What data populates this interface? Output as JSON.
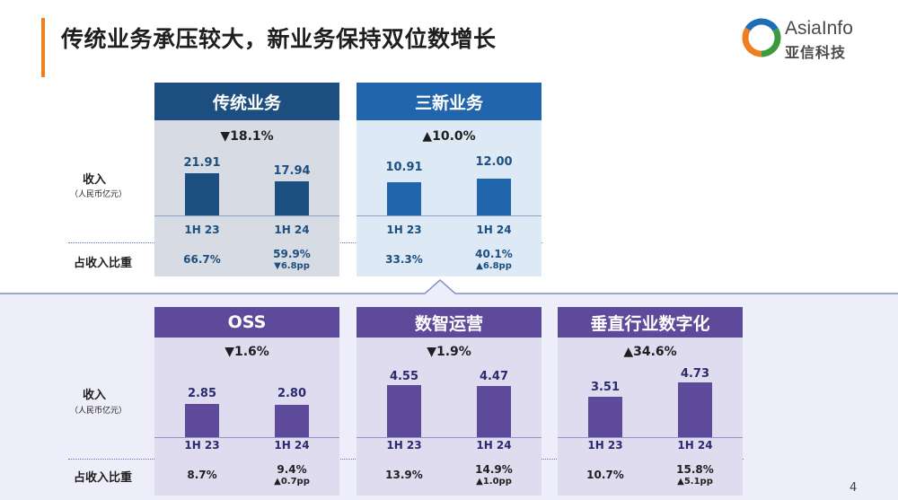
{
  "header": {
    "title": "传统业务承压较大，新业务保持双位数增长",
    "logo_en": "AsiaInfo",
    "logo_cn": "亚信科技"
  },
  "labels": {
    "revenue": "收入",
    "revenue_unit": "（人民币亿元）",
    "share": "占收入比重"
  },
  "top_panels": [
    {
      "title": "传统业务",
      "change": "▼18.1%",
      "periods": [
        "1H 23",
        "1H 24"
      ],
      "values": [
        "21.91",
        "17.94"
      ],
      "shares": [
        "66.7%",
        "59.9%"
      ],
      "share_change": "▼6.8pp",
      "colors": {
        "header": "#1c4e80",
        "bar": "#1c4e80",
        "bg": "#d7dbe3",
        "text": "#1c4e80"
      }
    },
    {
      "title": "三新业务",
      "change": "▲10.0%",
      "periods": [
        "1H 23",
        "1H 24"
      ],
      "values": [
        "10.91",
        "12.00"
      ],
      "shares": [
        "33.3%",
        "40.1%"
      ],
      "share_change": "▲6.8pp",
      "colors": {
        "header": "#2165ad",
        "bar": "#2165ad",
        "bg": "#ddeaf6",
        "text": "#1c4e80"
      }
    }
  ],
  "bottom_panels": [
    {
      "title": "OSS",
      "change": "▼1.6%",
      "periods": [
        "1H 23",
        "1H 24"
      ],
      "values": [
        "2.85",
        "2.80"
      ],
      "shares": [
        "8.7%",
        "9.4%"
      ],
      "share_change": "▲0.7pp"
    },
    {
      "title": "数智运营",
      "change": "▼1.9%",
      "periods": [
        "1H 23",
        "1H 24"
      ],
      "values": [
        "4.55",
        "4.47"
      ],
      "shares": [
        "13.9%",
        "14.9%"
      ],
      "share_change": "▲1.0pp"
    },
    {
      "title": "垂直行业数字化",
      "change": "▲34.6%",
      "periods": [
        "1H 23",
        "1H 24"
      ],
      "values": [
        "3.51",
        "4.73"
      ],
      "shares": [
        "10.7%",
        "15.8%"
      ],
      "share_change": "▲5.1pp"
    }
  ],
  "bottom_colors": {
    "header": "#5e4a9a",
    "bar": "#5e4a9a",
    "bg": "#e0dcf0",
    "text": "#2a2a6e"
  },
  "page_number": "4"
}
